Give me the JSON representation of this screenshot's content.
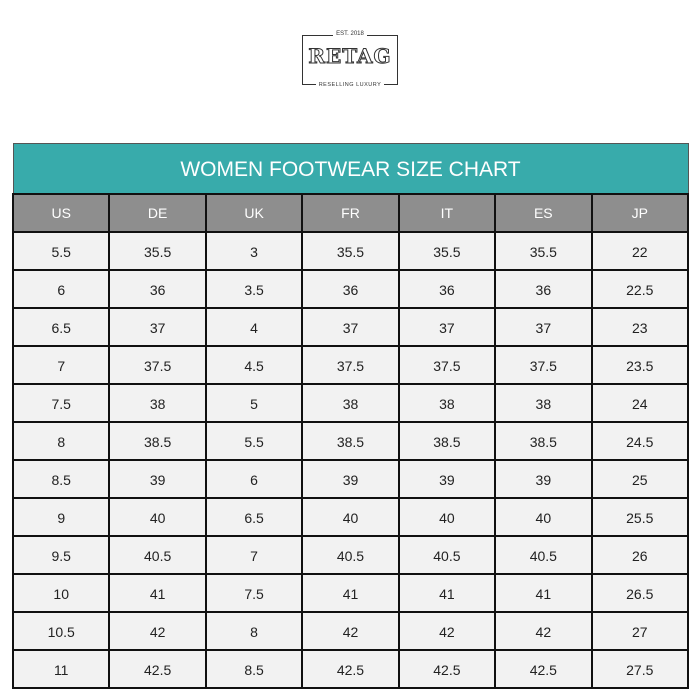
{
  "logo": {
    "est": "EST. 2018",
    "brand": "RETAG",
    "tagline": "RESELLING LUXURY"
  },
  "title": "WOMEN FOOTWEAR SIZE CHART",
  "columns": [
    "US",
    "DE",
    "UK",
    "FR",
    "IT",
    "ES",
    "JP"
  ],
  "rows": [
    [
      "5.5",
      "35.5",
      "3",
      "35.5",
      "35.5",
      "35.5",
      "22"
    ],
    [
      "6",
      "36",
      "3.5",
      "36",
      "36",
      "36",
      "22.5"
    ],
    [
      "6.5",
      "37",
      "4",
      "37",
      "37",
      "37",
      "23"
    ],
    [
      "7",
      "37.5",
      "4.5",
      "37.5",
      "37.5",
      "37.5",
      "23.5"
    ],
    [
      "7.5",
      "38",
      "5",
      "38",
      "38",
      "38",
      "24"
    ],
    [
      "8",
      "38.5",
      "5.5",
      "38.5",
      "38.5",
      "38.5",
      "24.5"
    ],
    [
      "8.5",
      "39",
      "6",
      "39",
      "39",
      "39",
      "25"
    ],
    [
      "9",
      "40",
      "6.5",
      "40",
      "40",
      "40",
      "25.5"
    ],
    [
      "9.5",
      "40.5",
      "7",
      "40.5",
      "40.5",
      "40.5",
      "26"
    ],
    [
      "10",
      "41",
      "7.5",
      "41",
      "41",
      "41",
      "26.5"
    ],
    [
      "10.5",
      "42",
      "8",
      "42",
      "42",
      "42",
      "27"
    ],
    [
      "11",
      "42.5",
      "8.5",
      "42.5",
      "42.5",
      "42.5",
      "27.5"
    ]
  ],
  "colors": {
    "title_bg": "#38abab",
    "header_bg": "#8e8e8e",
    "cell_bg": "#f2f2f2"
  }
}
